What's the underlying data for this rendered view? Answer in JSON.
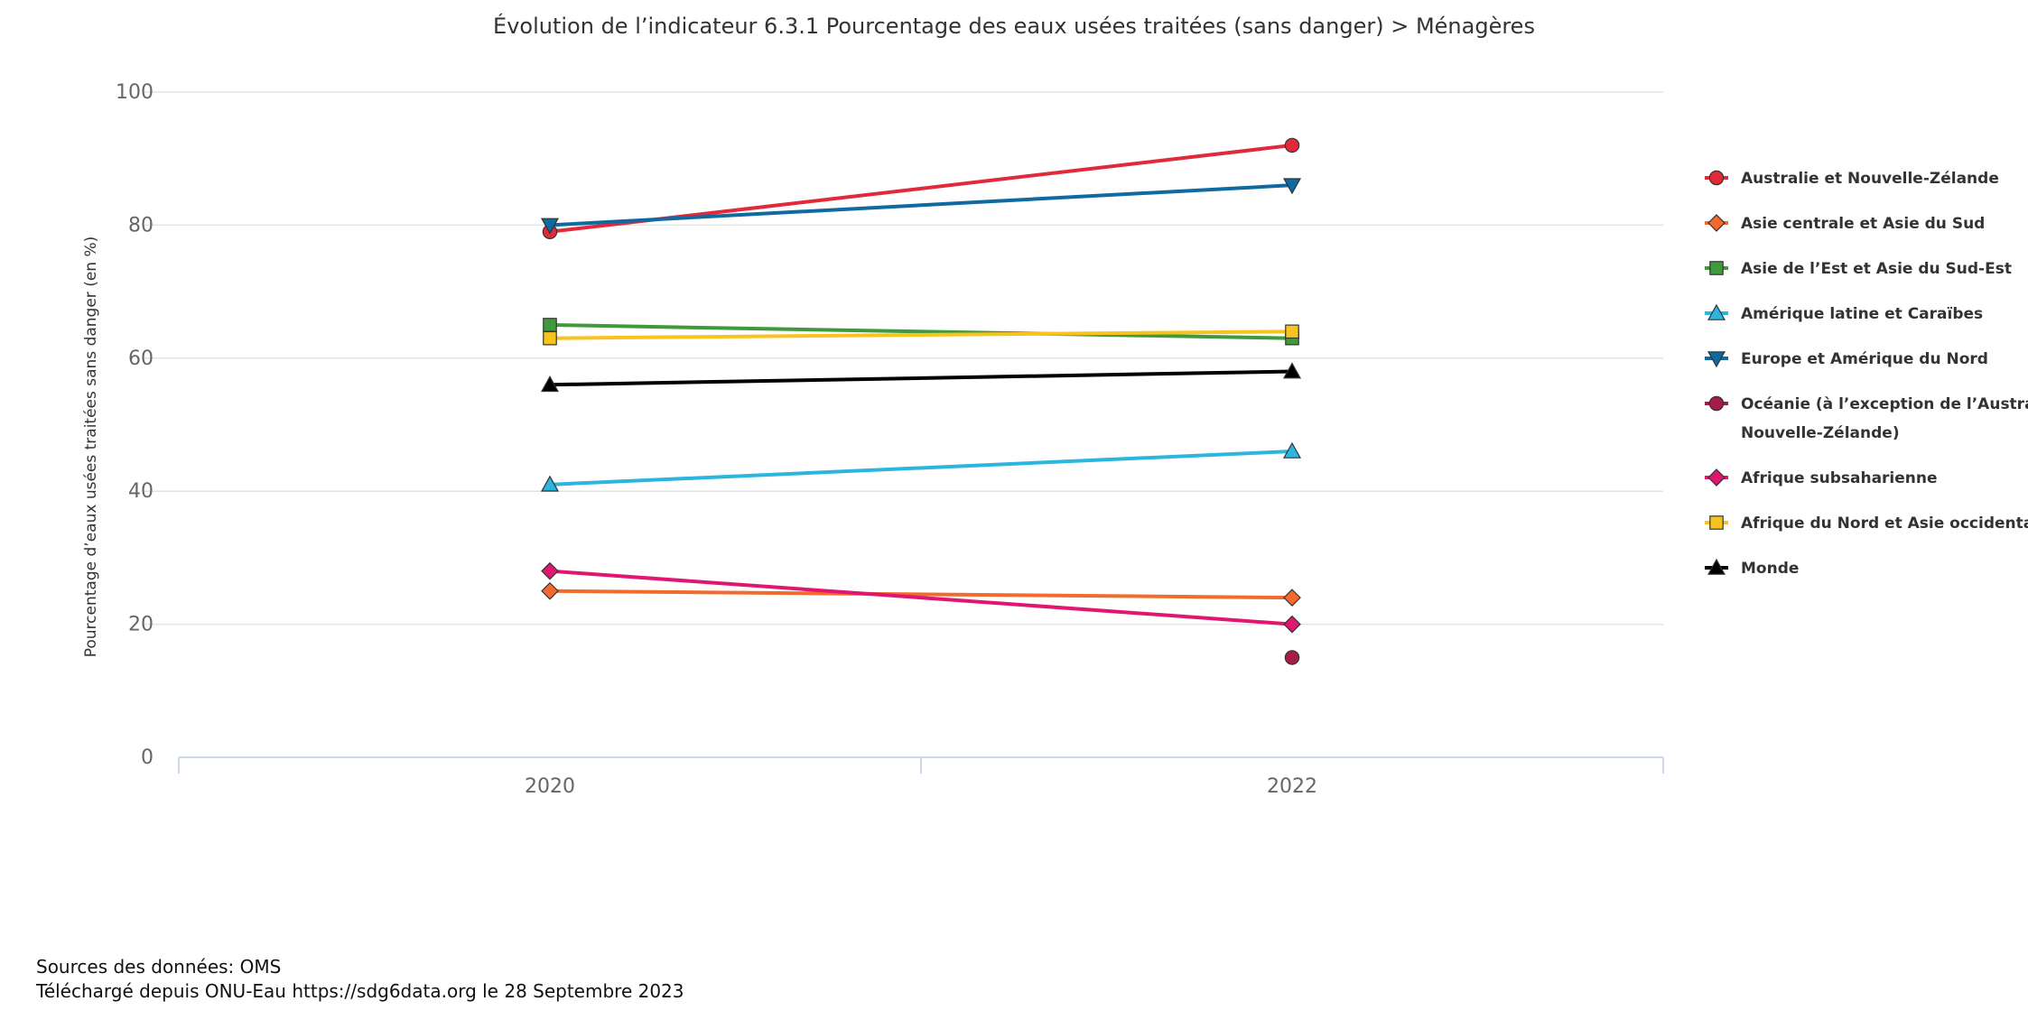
{
  "chart_data": {
    "type": "line",
    "title": "Évolution de l’indicateur 6.3.1 Pourcentage des eaux usées traitées (sans danger) > Ménagères",
    "ylabel": "Pourcentage d’eaux usées traitées sans danger (en %)",
    "xlabel": "",
    "ylim": [
      0,
      100
    ],
    "yticks": [
      0,
      20,
      40,
      60,
      80,
      100
    ],
    "x": [
      "2020",
      "2022"
    ],
    "grid": true,
    "legend_position": "right",
    "series": [
      {
        "name": "Australie et Nouvelle-Zélande",
        "color": "#e02a3a",
        "marker": "circle",
        "values": [
          79,
          92
        ]
      },
      {
        "name": "Asie centrale et Asie du Sud",
        "color": "#f26a2e",
        "marker": "diamond",
        "values": [
          25,
          24
        ]
      },
      {
        "name": "Asie de l’Est et Asie du Sud-Est",
        "color": "#3f9a3c",
        "marker": "square",
        "values": [
          65,
          63
        ]
      },
      {
        "name": "Amérique latine et Caraïbes",
        "color": "#2bb6e0",
        "marker": "triangle-up",
        "values": [
          41,
          46
        ]
      },
      {
        "name": "Europe et Amérique du Nord",
        "color": "#0e6aa0",
        "marker": "triangle-down",
        "values": [
          80,
          86
        ]
      },
      {
        "name": "Océanie (à l’exception de l’Australie et de la Nouvelle-Zélande)",
        "name_lines": [
          "Océanie (à l’exception de l’Australie et de la",
          "Nouvelle-Zélande)"
        ],
        "color": "#a51c45",
        "marker": "circle",
        "values": [
          null,
          15
        ]
      },
      {
        "name": "Afrique subsaharienne",
        "color": "#e0166f",
        "marker": "diamond",
        "values": [
          28,
          20
        ]
      },
      {
        "name": "Afrique du Nord et Asie occidentale",
        "color": "#f7c31c",
        "marker": "square",
        "values": [
          63,
          64
        ]
      },
      {
        "name": "Monde",
        "color": "#000000",
        "marker": "triangle-up",
        "values": [
          56,
          58
        ]
      }
    ]
  },
  "footer": {
    "source_line": "Sources des données: OMS",
    "download_line": "Téléchargé depuis ONU-Eau https://sdg6data.org le 28 Septembre 2023"
  }
}
